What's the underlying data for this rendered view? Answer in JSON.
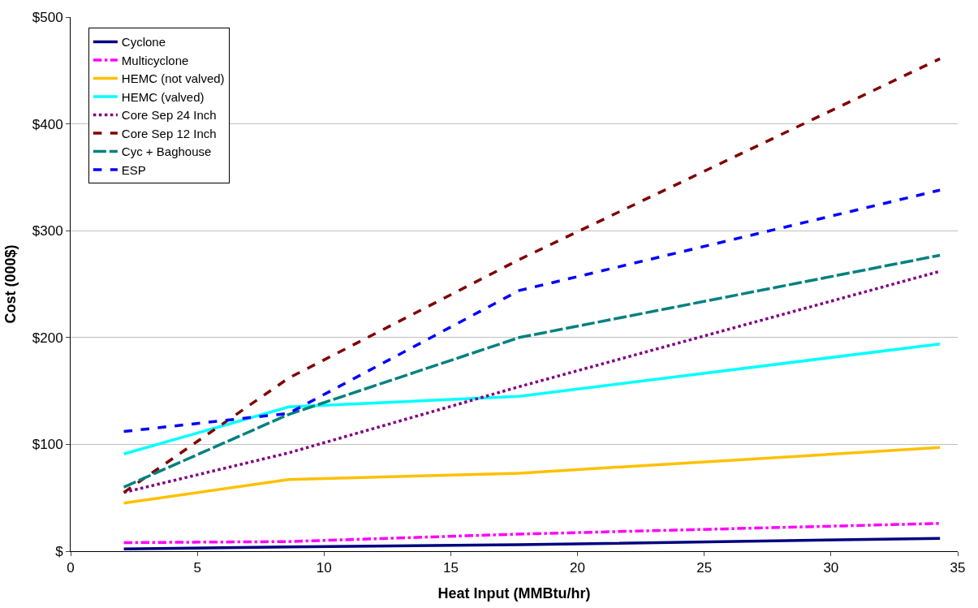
{
  "chart_data": {
    "type": "line",
    "xlabel": "Heat Input (MMBtu/hr)",
    "ylabel": "Cost (000$)",
    "x": [
      2.1,
      8.6,
      17.7,
      34.3
    ],
    "series": [
      {
        "name": "Cyclone",
        "color": "#000080",
        "values": [
          2,
          4,
          6,
          12
        ],
        "line_style": "solid"
      },
      {
        "name": "Multicyclone",
        "color": "#ff00ff",
        "values": [
          8,
          9,
          16,
          26
        ],
        "line_style": "dashdot"
      },
      {
        "name": "HEMC (not valved)",
        "color": "#ffc000",
        "values": [
          45,
          67,
          73,
          97
        ],
        "line_style": "solid"
      },
      {
        "name": "HEMC (valved)",
        "color": "#00ffff",
        "values": [
          91,
          135,
          145,
          194
        ],
        "line_style": "solid"
      },
      {
        "name": "Core Sep 24 Inch",
        "color": "#800080",
        "values": [
          55,
          92,
          154,
          262
        ],
        "line_style": "dotted"
      },
      {
        "name": "Core Sep 12 Inch",
        "color": "#800000",
        "values": [
          55,
          162,
          273,
          461
        ],
        "line_style": "dashed"
      },
      {
        "name": "Cyc + Baghouse",
        "color": "#008080",
        "values": [
          60,
          128,
          200,
          277
        ],
        "line_style": "longdash"
      },
      {
        "name": "ESP",
        "color": "#0000ff",
        "values": [
          112,
          129,
          244,
          338
        ],
        "line_style": "dashed"
      }
    ],
    "xlim": [
      0,
      35
    ],
    "xticks": [
      0,
      5,
      10,
      15,
      20,
      25,
      30,
      35
    ],
    "ylim": [
      0,
      500
    ],
    "yticks": [
      {
        "value": 0,
        "label": "$"
      },
      {
        "value": 100,
        "label": "$100"
      },
      {
        "value": 200,
        "label": "$200"
      },
      {
        "value": 300,
        "label": "$300"
      },
      {
        "value": 400,
        "label": "$400"
      },
      {
        "value": 500,
        "label": "$500"
      }
    ],
    "grid": "y",
    "legend": "top left",
    "marker": "none"
  }
}
